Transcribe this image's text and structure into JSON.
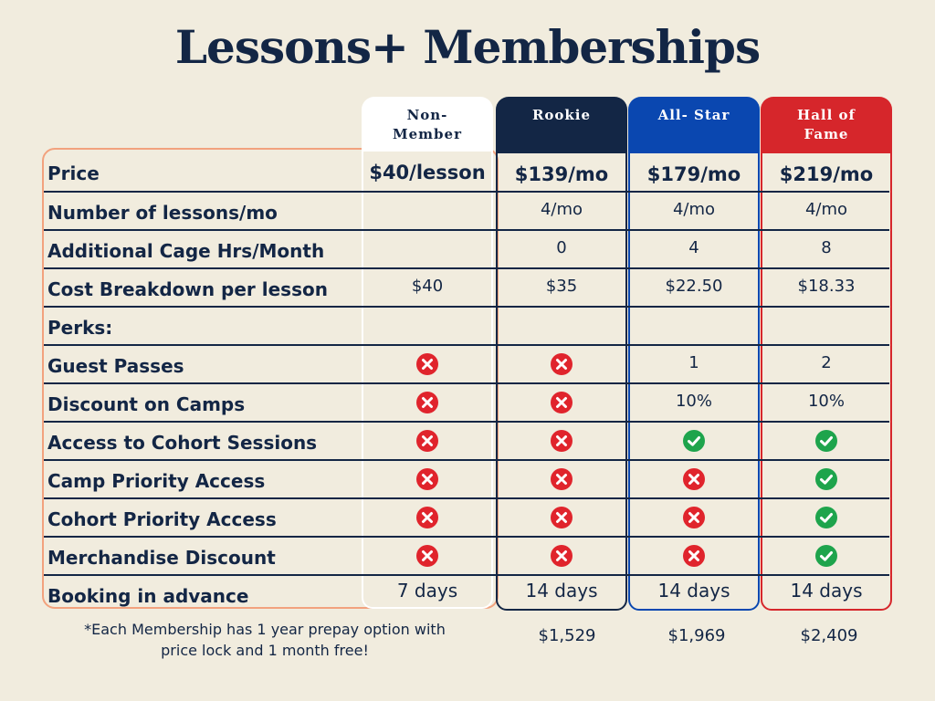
{
  "title": "Lessons+ Memberships",
  "colors": {
    "navy": "#132645",
    "royal_blue": "#0a47b0",
    "red": "#d6262b",
    "peach": "#f2a27e",
    "green": "#1ea44c",
    "background": "#f1ecde"
  },
  "columns": [
    {
      "name_line1": "Non-",
      "name_line2": "Member",
      "price": "$40/lesson",
      "prepay": ""
    },
    {
      "name_line1": "Rookie",
      "name_line2": "",
      "price": "$139/mo",
      "prepay": "$1,529"
    },
    {
      "name_line1": "All- Star",
      "name_line2": "",
      "price": "$179/mo",
      "prepay": "$1,969"
    },
    {
      "name_line1": "Hall of",
      "name_line2": "Fame",
      "price": "$219/mo",
      "prepay": "$2,409"
    }
  ],
  "rows": [
    {
      "label": "Price"
    },
    {
      "label": "Number of lessons/mo",
      "cells": [
        "",
        "4/mo",
        "4/mo",
        "4/mo"
      ]
    },
    {
      "label": "Additional Cage Hrs/Month",
      "cells": [
        "",
        "0",
        "4",
        "8"
      ]
    },
    {
      "label": "Cost Breakdown per lesson",
      "cells": [
        "$40",
        "$35",
        "$22.50",
        "$18.33"
      ]
    },
    {
      "label": "Perks:",
      "cells": [
        "",
        "",
        "",
        ""
      ]
    },
    {
      "label": "Guest Passes",
      "cells": [
        "x-icon",
        "x-icon",
        "1",
        "2"
      ]
    },
    {
      "label": "Discount on Camps",
      "cells": [
        "x-icon",
        "x-icon",
        "10%",
        "10%"
      ]
    },
    {
      "label": "Access to Cohort Sessions",
      "cells": [
        "x-icon",
        "x-icon",
        "check-icon",
        "check-icon"
      ]
    },
    {
      "label": "Camp Priority Access",
      "cells": [
        "x-icon",
        "x-icon",
        "x-icon",
        "check-icon"
      ]
    },
    {
      "label": "Cohort Priority Access",
      "cells": [
        "x-icon",
        "x-icon",
        "x-icon",
        "check-icon"
      ]
    },
    {
      "label": "Merchandise Discount",
      "cells": [
        "x-icon",
        "x-icon",
        "x-icon",
        "check-icon"
      ]
    },
    {
      "label": "Booking in advance",
      "cells": [
        "7 days",
        "14 days",
        "14 days",
        "14 days"
      ]
    }
  ],
  "footnote_line1": "*Each Membership has 1 year prepay option with",
  "footnote_line2": "price lock and 1 month free!"
}
